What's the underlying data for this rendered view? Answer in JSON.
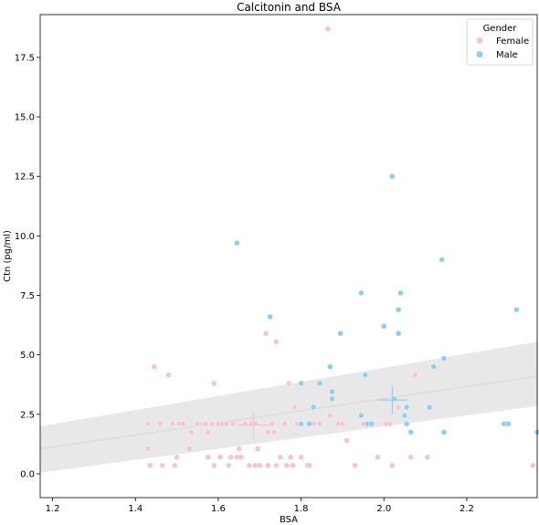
{
  "chart_data": {
    "type": "scatter",
    "title": "Calcitonin and BSA",
    "xlabel": "BSA",
    "ylabel": "Ctn (pg/ml)",
    "xlim": [
      1.17,
      2.37
    ],
    "ylim": [
      -1.0,
      19.3
    ],
    "xticks": [
      "1.2",
      "1.4",
      "1.6",
      "1.8",
      "2.0",
      "2.2"
    ],
    "yticks": [
      "0.0",
      "2.5",
      "5.0",
      "7.5",
      "10.0",
      "12.5",
      "15.0",
      "17.5"
    ],
    "grid": false,
    "legend": {
      "title": "Gender",
      "position": "top-right",
      "entries": [
        "Female",
        "Male"
      ]
    },
    "colors": {
      "Female": "#f7c4d2",
      "Male": "#8ecdf0",
      "regression_line": "#dcdcdc",
      "confidence_band": "#e6e6e6"
    },
    "series": [
      {
        "name": "Female",
        "points": [
          [
            1.43,
            2.1
          ],
          [
            1.43,
            1.05
          ],
          [
            1.435,
            0.35
          ],
          [
            1.445,
            4.5
          ],
          [
            1.46,
            2.1
          ],
          [
            1.465,
            0.35
          ],
          [
            1.48,
            4.15
          ],
          [
            1.49,
            2.1
          ],
          [
            1.495,
            0.35
          ],
          [
            1.5,
            0.7
          ],
          [
            1.505,
            2.1
          ],
          [
            1.515,
            2.1
          ],
          [
            1.53,
            1.05
          ],
          [
            1.535,
            1.75
          ],
          [
            1.55,
            2.1
          ],
          [
            1.56,
            2.1
          ],
          [
            1.565,
            2.1
          ],
          [
            1.57,
            2.1
          ],
          [
            1.575,
            1.75
          ],
          [
            1.575,
            0.7
          ],
          [
            1.585,
            2.1
          ],
          [
            1.59,
            3.8
          ],
          [
            1.59,
            0.35
          ],
          [
            1.6,
            2.1
          ],
          [
            1.605,
            0.7
          ],
          [
            1.61,
            2.1
          ],
          [
            1.62,
            2.1
          ],
          [
            1.625,
            0.35
          ],
          [
            1.63,
            0.7
          ],
          [
            1.635,
            2.1
          ],
          [
            1.645,
            0.7
          ],
          [
            1.65,
            1.05
          ],
          [
            1.655,
            0.7
          ],
          [
            1.665,
            2.1
          ],
          [
            1.675,
            0.35
          ],
          [
            1.68,
            2.1
          ],
          [
            1.69,
            2.1
          ],
          [
            1.69,
            0.35
          ],
          [
            1.695,
            1.05
          ],
          [
            1.7,
            0.35
          ],
          [
            1.715,
            5.9
          ],
          [
            1.72,
            1.75
          ],
          [
            1.72,
            0.35
          ],
          [
            1.73,
            2.1
          ],
          [
            1.735,
            1.75
          ],
          [
            1.74,
            5.55
          ],
          [
            1.74,
            0.35
          ],
          [
            1.75,
            0.7
          ],
          [
            1.76,
            2.1
          ],
          [
            1.765,
            0.35
          ],
          [
            1.77,
            3.8
          ],
          [
            1.775,
            0.7
          ],
          [
            1.78,
            0.35
          ],
          [
            1.785,
            2.8
          ],
          [
            1.79,
            2.1
          ],
          [
            1.8,
            0.7
          ],
          [
            1.815,
            0.35
          ],
          [
            1.82,
            0.35
          ],
          [
            1.83,
            2.1
          ],
          [
            1.845,
            2.1
          ],
          [
            1.865,
            18.7
          ],
          [
            1.87,
            2.45
          ],
          [
            1.89,
            2.1
          ],
          [
            1.9,
            2.1
          ],
          [
            1.91,
            1.4
          ],
          [
            1.93,
            0.35
          ],
          [
            1.95,
            2.1
          ],
          [
            1.985,
            0.7
          ],
          [
            2.005,
            2.1
          ],
          [
            2.015,
            2.1
          ],
          [
            2.02,
            0.35
          ],
          [
            2.035,
            2.8
          ],
          [
            2.065,
            0.7
          ],
          [
            2.075,
            4.15
          ],
          [
            2.105,
            0.7
          ],
          [
            2.36,
            0.35
          ]
        ]
      },
      {
        "name": "Male",
        "points": [
          [
            1.645,
            9.7
          ],
          [
            1.725,
            6.6
          ],
          [
            1.8,
            2.1
          ],
          [
            1.8,
            3.8
          ],
          [
            1.82,
            2.1
          ],
          [
            1.83,
            2.8
          ],
          [
            1.845,
            3.8
          ],
          [
            1.87,
            4.5
          ],
          [
            1.875,
            3.15
          ],
          [
            1.875,
            3.45
          ],
          [
            1.895,
            5.9
          ],
          [
            1.945,
            2.45
          ],
          [
            1.945,
            7.6
          ],
          [
            1.955,
            4.15
          ],
          [
            1.96,
            2.1
          ],
          [
            1.97,
            2.1
          ],
          [
            2.0,
            6.2
          ],
          [
            2.02,
            12.5
          ],
          [
            2.025,
            3.15
          ],
          [
            2.035,
            5.9
          ],
          [
            2.035,
            6.9
          ],
          [
            2.04,
            7.6
          ],
          [
            2.05,
            2.45
          ],
          [
            2.055,
            2.8
          ],
          [
            2.055,
            2.1
          ],
          [
            2.065,
            1.75
          ],
          [
            2.11,
            2.8
          ],
          [
            2.12,
            4.5
          ],
          [
            2.14,
            9.0
          ],
          [
            2.145,
            4.85
          ],
          [
            2.145,
            1.75
          ],
          [
            2.29,
            2.1
          ],
          [
            2.3,
            2.1
          ],
          [
            2.32,
            6.9
          ],
          [
            2.37,
            1.75
          ]
        ]
      }
    ],
    "group_means": [
      {
        "name": "Female",
        "x": 1.685,
        "y": 2.05,
        "xerr": 0.04,
        "yerr": 0.6
      },
      {
        "name": "Male",
        "x": 2.02,
        "y": 3.1,
        "xerr": 0.035,
        "yerr": 0.6
      }
    ],
    "regression": {
      "x": [
        1.17,
        2.37
      ],
      "y": [
        1.05,
        4.1
      ],
      "ci_lower": [
        0.05,
        2.85
      ],
      "ci_upper": [
        2.0,
        5.55
      ]
    }
  }
}
